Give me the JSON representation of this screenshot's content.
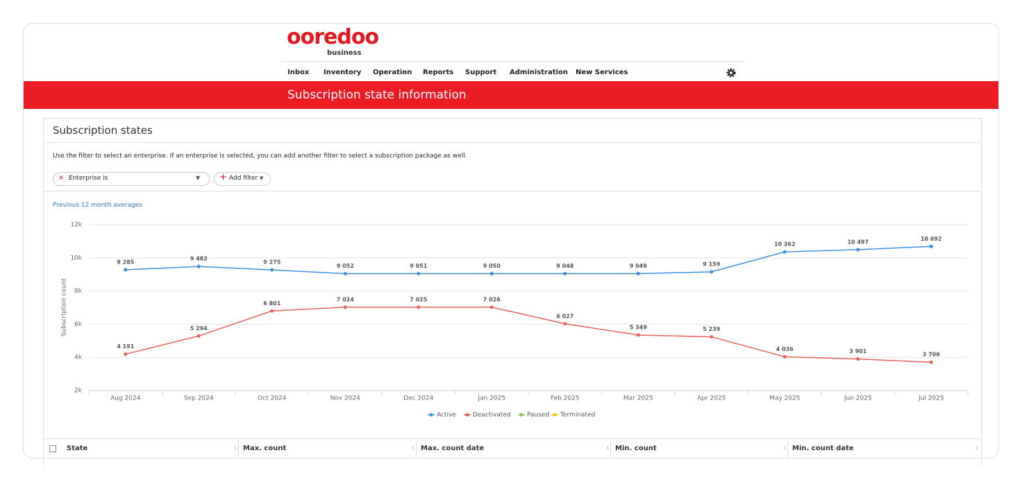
{
  "header": {
    "logo": "ooredoo",
    "logo_sub": "business",
    "nav": [
      "Inbox",
      "Inventory",
      "Operation",
      "Reports",
      "Support",
      "Administration",
      "New Services"
    ]
  },
  "banner": {
    "title": "Subscription state information"
  },
  "panel": {
    "title": "Subscription states",
    "description": "Use the filter to select an enterprise. If an enterprise is selected, you can add another filter to select a subscription package as well.",
    "filters": [
      "Enterprise is",
      "Add filter"
    ],
    "link": "Previous 12 month averages"
  },
  "table": {
    "columns": [
      "State",
      "Max. count",
      "Max. count date",
      "Min. count",
      "Min. count date"
    ]
  },
  "chart_data": {
    "type": "line",
    "y_label": "Subscription count",
    "categories": [
      "Aug 2024",
      "Sep 2024",
      "Oct 2024",
      "Nov 2024",
      "Dec 2024",
      "Jan 2025",
      "Feb 2025",
      "Mar 2025",
      "Apr 2025",
      "May 2025",
      "Jun 2025",
      "Jul 2025"
    ],
    "ylim": [
      2000,
      12000
    ],
    "yticks": [
      {
        "value": 2000,
        "label": "2k"
      },
      {
        "value": 4000,
        "label": "4k"
      },
      {
        "value": 6000,
        "label": "6k"
      },
      {
        "value": 8000,
        "label": "8k"
      },
      {
        "value": 10000,
        "label": "10k"
      },
      {
        "value": 12000,
        "label": "12k"
      }
    ],
    "grid": true,
    "legend": "bottom",
    "series": [
      {
        "name": "Active",
        "color": "#3b8fe3",
        "values": [
          9285,
          9482,
          9275,
          9052,
          9051,
          9050,
          9048,
          9049,
          9159,
          10362,
          10497,
          10692
        ],
        "value_labels": [
          "9 285",
          "9 482",
          "9 275",
          "9 052",
          "9 051",
          "9 050",
          "9 048",
          "9 049",
          "9 159",
          "10 362",
          "10 497",
          "10 692"
        ]
      },
      {
        "name": "Deactivated",
        "color": "#e8605a",
        "values": [
          4191,
          5294,
          6801,
          7024,
          7025,
          7026,
          6027,
          5349,
          5239,
          4036,
          3901,
          3706
        ],
        "value_labels": [
          "4 191",
          "5 294",
          "6 801",
          "7 024",
          "7 025",
          "7 026",
          "6 027",
          "5 349",
          "5 239",
          "4 036",
          "3 901",
          "3 706"
        ]
      },
      {
        "name": "Paused",
        "color": "#8bc34a",
        "values": [
          null,
          null,
          null,
          null,
          null,
          null,
          null,
          null,
          null,
          null,
          null,
          null
        ]
      },
      {
        "name": "Terminated",
        "color": "#f2c200",
        "values": [
          null,
          null,
          null,
          null,
          null,
          null,
          null,
          null,
          null,
          null,
          null,
          null
        ]
      }
    ]
  }
}
